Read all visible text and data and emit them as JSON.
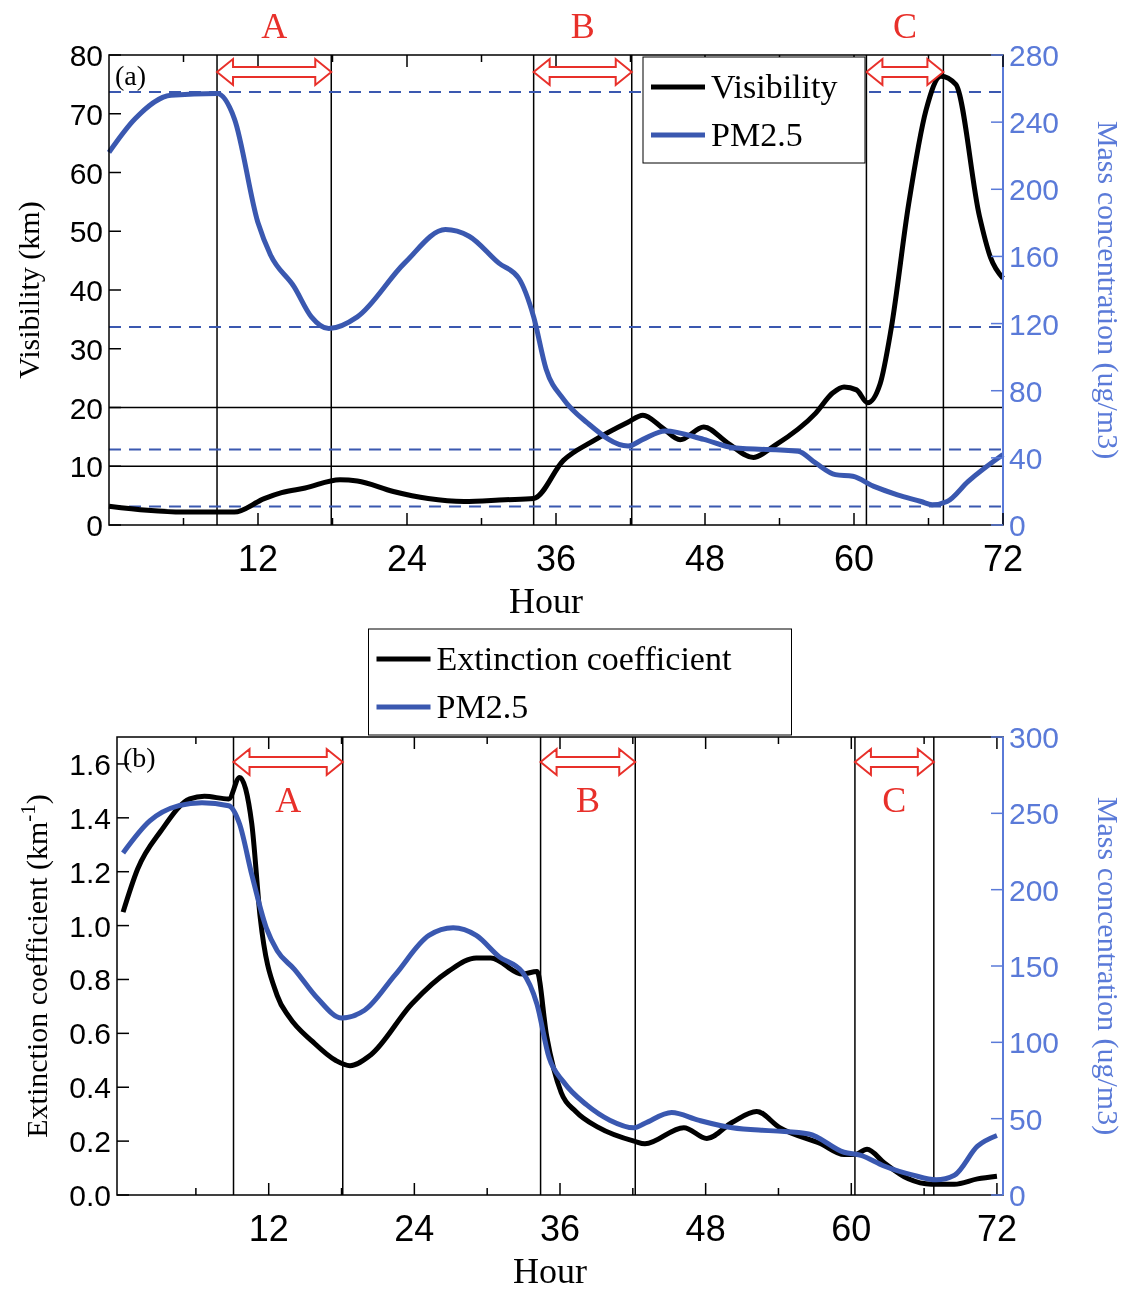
{
  "chart_data": [
    {
      "type": "line",
      "xlabel": "Hour",
      "ylabel": "Visibility (km)",
      "y2label": "Mass concentration (ug/m3)",
      "legend": "top right",
      "xlim": [
        0,
        72
      ],
      "xticks": [
        {
          "value": 6,
          "label": null
        },
        12,
        {
          "value": 18,
          "label": null
        },
        24,
        {
          "value": 30,
          "label": null
        },
        36,
        {
          "value": 42,
          "label": null
        },
        48,
        {
          "value": 54,
          "label": null
        },
        60,
        {
          "value": 66,
          "label": null
        },
        72
      ],
      "ylim": [
        0,
        80
      ],
      "yticks": [
        0,
        10,
        20,
        30,
        40,
        50,
        60,
        70,
        80
      ],
      "y2lim": [
        0,
        280
      ],
      "y2ticks": [
        0,
        40,
        80,
        120,
        160,
        200,
        240,
        280
      ],
      "annotations": [
        "(a)",
        "A",
        "B",
        "C"
      ],
      "ref_lines": [
        {
          "axis": "x",
          "value": 8.7,
          "color": "#000000"
        },
        {
          "axis": "x",
          "value": 17.9,
          "color": "#000000"
        },
        {
          "axis": "x",
          "value": 34.2,
          "color": "#000000"
        },
        {
          "axis": "x",
          "value": 42.1,
          "color": "#000000"
        },
        {
          "axis": "x",
          "value": 61,
          "color": "#000000"
        },
        {
          "axis": "x",
          "value": 67.2,
          "color": "#000000"
        },
        {
          "axis": "y",
          "value": 10,
          "color": "#000000"
        },
        {
          "axis": "y",
          "value": 20,
          "color": "#000000"
        },
        {
          "axis": "y2",
          "value": 258,
          "color": "#3a58b0",
          "line_style": "dashed"
        },
        {
          "axis": "y2",
          "value": 118,
          "color": "#3a58b0",
          "line_style": "dashed"
        },
        {
          "axis": "y2",
          "value": 45,
          "color": "#3a58b0",
          "line_style": "dashed"
        },
        {
          "axis": "y2",
          "value": 11,
          "color": "#3a58b0",
          "line_style": "dashed"
        }
      ],
      "series": [
        {
          "name": "Visibility",
          "color": "#000000",
          "x": [
            0,
            3.1,
            5.9,
            10.1,
            12.5,
            13.9,
            15.8,
            18.6,
            20,
            22.9,
            25.7,
            28.6,
            31.9,
            34.2,
            36.6,
            38.9,
            41.8,
            43,
            44.6,
            46,
            47.9,
            49.8,
            51.9,
            53.6,
            56.9,
            58.3,
            59.2,
            60.2,
            61.1,
            62.1,
            63,
            64.4,
            65.8,
            67,
            68.2,
            70.1,
            71,
            72
          ],
          "values": [
            3.2,
            2.5,
            2.2,
            2.2,
            4.5,
            5.5,
            6.3,
            7.7,
            7.5,
            5.7,
            4.5,
            4,
            4.3,
            4.5,
            11,
            14.2,
            17.5,
            18.7,
            16.5,
            14.5,
            16.7,
            14,
            11.5,
            13.5,
            19,
            22.5,
            23.5,
            23,
            20.8,
            24,
            33.5,
            54.6,
            70.6,
            76.4,
            75,
            52.6,
            45.5,
            42
          ]
        },
        {
          "name": "PM2.5",
          "color": "#3a58b0",
          "axis": "y2",
          "x": [
            0,
            2.1,
            5,
            8.7,
            10.1,
            12,
            13,
            14.9,
            16.3,
            17.7,
            20,
            23.8,
            27.1,
            29,
            31.4,
            33,
            34.2,
            35.2,
            36.6,
            38.5,
            41.8,
            43,
            44.8,
            47.9,
            50.3,
            55.5,
            56.9,
            58.5,
            59.9,
            61.6,
            63.5,
            65.4,
            66.3,
            67.5,
            69.2,
            72
          ],
          "values": [
            222,
            242,
            256,
            257,
            242,
            180,
            161,
            142,
            124,
            117,
            124,
            156,
            176,
            172,
            156,
            147,
            124,
            93,
            75,
            61,
            47,
            51,
            56,
            51,
            46,
            44,
            37,
            30,
            29,
            23,
            18,
            14,
            12,
            14,
            26,
            42
          ]
        }
      ]
    },
    {
      "type": "line",
      "xlabel": "Hour",
      "ylabel": "Extinction coefficient  (km$^{-1}$)",
      "y2label": "Mass concentration (ug/m3)",
      "legend": "top",
      "xlim": [
        -0.5,
        72.5
      ],
      "xticks": [
        {
          "value": 6,
          "label": null
        },
        12,
        {
          "value": 18,
          "label": null
        },
        24,
        {
          "value": 30,
          "label": null
        },
        36,
        {
          "value": 42,
          "label": null
        },
        48,
        {
          "value": 54,
          "label": null
        },
        60,
        {
          "value": 66,
          "label": null
        },
        72
      ],
      "ylim": [
        0,
        1.7
      ],
      "yticks": [
        {
          "value": 0,
          "label": "0.0"
        },
        {
          "value": 0.2,
          "label": "0.2"
        },
        {
          "value": 0.4,
          "label": "0.4"
        },
        {
          "value": 0.6,
          "label": "0.6"
        },
        {
          "value": 0.8,
          "label": "0.8"
        },
        {
          "value": 1,
          "label": "1.0"
        },
        {
          "value": 1.2,
          "label": "1.2"
        },
        {
          "value": 1.4,
          "label": "1.4"
        },
        {
          "value": 1.6,
          "label": "1.6"
        }
      ],
      "y2lim": [
        0,
        300
      ],
      "y2ticks": [
        0,
        50,
        100,
        150,
        200,
        250,
        300
      ],
      "annotations": [
        "(b)",
        "A",
        "B",
        "C"
      ],
      "ref_lines": [
        {
          "axis": "x",
          "value": 9.1,
          "color": "#000000"
        },
        {
          "axis": "x",
          "value": 18.1,
          "color": "#000000"
        },
        {
          "axis": "x",
          "value": 34.4,
          "color": "#000000"
        },
        {
          "axis": "x",
          "value": 42.2,
          "color": "#000000"
        },
        {
          "axis": "x",
          "value": 60.3,
          "color": "#000000"
        },
        {
          "axis": "x",
          "value": 66.8,
          "color": "#000000"
        }
      ],
      "series": [
        {
          "name": "Extinction coefficient",
          "color": "#000000",
          "x": [
            0,
            1.2,
            3.1,
            5.5,
            6.7,
            8.7,
            9.6,
            10.6,
            11.3,
            12.7,
            13.7,
            15.6,
            17.5,
            18.7,
            20.4,
            23.8,
            26.8,
            29.1,
            30.3,
            32.9,
            34.1,
            34.9,
            36.1,
            37.3,
            39.2,
            42.1,
            43,
            46.2,
            48.1,
            50.2,
            52.2,
            54.1,
            57.5,
            59.4,
            60.3,
            61.3,
            62.7,
            64.7,
            66.6,
            68.5,
            70.4,
            72
          ],
          "values": [
            1.05,
            1.21,
            1.35,
            1.47,
            1.48,
            1.47,
            1.55,
            1.38,
            1.03,
            0.74,
            0.66,
            0.57,
            0.5,
            0.48,
            0.52,
            0.71,
            0.83,
            0.88,
            0.88,
            0.82,
            0.83,
            0.59,
            0.38,
            0.31,
            0.25,
            0.2,
            0.19,
            0.25,
            0.21,
            0.27,
            0.31,
            0.25,
            0.19,
            0.15,
            0.15,
            0.17,
            0.12,
            0.06,
            0.04,
            0.04,
            0.06,
            0.07
          ]
        },
        {
          "name": "PM2.5",
          "color": "#3a58b0",
          "axis": "y2",
          "x": [
            0,
            2.2,
            4.6,
            6.5,
            8.7,
            9.6,
            10.6,
            11.8,
            12.7,
            14.1,
            16,
            18,
            19.9,
            22.4,
            25.2,
            27.2,
            29.1,
            31,
            32.9,
            34.1,
            35.1,
            36.3,
            38.2,
            40.1,
            42.1,
            43,
            45.2,
            47.4,
            50.2,
            53.6,
            56.5,
            59.4,
            60.8,
            62.7,
            65.1,
            67,
            68.5,
            70.4,
            72
          ],
          "values": [
            224,
            245,
            255,
            257,
            255,
            243,
            210,
            175,
            160,
            148,
            129,
            116,
            121,
            144,
            170,
            175,
            170,
            156,
            146,
            125,
            90,
            74,
            59,
            49,
            44,
            47,
            54,
            49,
            44,
            42,
            40,
            28,
            26,
            19,
            13,
            10,
            13,
            32,
            39
          ]
        }
      ]
    }
  ]
}
